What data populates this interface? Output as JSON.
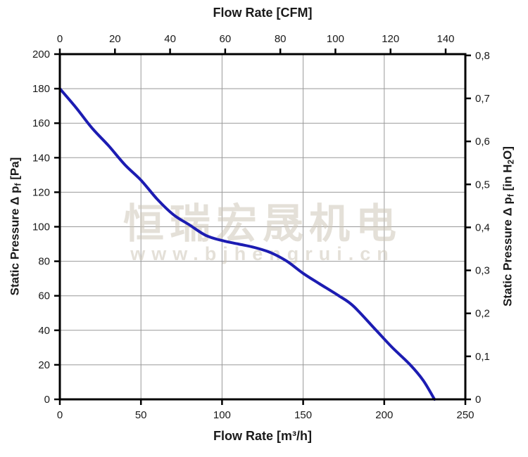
{
  "chart_data": {
    "type": "line",
    "title": "Fan performance curve: static pressure vs flow rate",
    "series": [
      {
        "name": "static-pressure-curve",
        "color": "#1c1cb2",
        "points_m3h_pa": [
          [
            0,
            180
          ],
          [
            10,
            169
          ],
          [
            20,
            157
          ],
          [
            30,
            147
          ],
          [
            40,
            136
          ],
          [
            50,
            127
          ],
          [
            60,
            116
          ],
          [
            70,
            107
          ],
          [
            80,
            101
          ],
          [
            90,
            95
          ],
          [
            100,
            92
          ],
          [
            110,
            90
          ],
          [
            120,
            88
          ],
          [
            130,
            85
          ],
          [
            140,
            80
          ],
          [
            150,
            73
          ],
          [
            160,
            67
          ],
          [
            172,
            60
          ],
          [
            181,
            54
          ],
          [
            195,
            40
          ],
          [
            205,
            30
          ],
          [
            216,
            20
          ],
          [
            224,
            11
          ],
          [
            231,
            0
          ]
        ]
      }
    ],
    "axes": {
      "top": {
        "label": "Flow Rate [CFM]",
        "min": 0,
        "max": 140,
        "ticks": [
          0,
          20,
          40,
          60,
          80,
          100,
          120,
          140
        ],
        "m3h_per_cfm": 1.699
      },
      "bottom": {
        "label": "Flow Rate [m³/h]",
        "min": 0,
        "max": 250,
        "ticks": [
          0,
          50,
          100,
          150,
          200,
          250
        ]
      },
      "left": {
        "label_text": "Static Pressure Δ pf [Pa]",
        "label_parts": [
          {
            "t": "Static Pressure Δ p"
          },
          {
            "t": "f",
            "sub": true
          },
          {
            "t": " [Pa]"
          }
        ],
        "min": 0,
        "max": 200,
        "ticks": [
          0,
          20,
          40,
          60,
          80,
          100,
          120,
          140,
          160,
          180,
          200
        ]
      },
      "right": {
        "label_text": "Static Pressure Δ pf [in H2O]",
        "label_parts": [
          {
            "t": "Static Pressure Δ p"
          },
          {
            "t": "f",
            "sub": true
          },
          {
            "t": " [in H"
          },
          {
            "t": "2",
            "sub": true
          },
          {
            "t": "O]"
          }
        ],
        "min": 0,
        "max": 0.8,
        "tick_values": [
          0,
          0.1,
          0.2,
          0.3,
          0.4,
          0.5,
          0.6,
          0.7,
          0.8
        ],
        "tick_labels": [
          "0",
          "0,1",
          "0,2",
          "0,3",
          "0,4",
          "0,5",
          "0,6",
          "0,7",
          "0,8"
        ],
        "pa_per_inh2o": 249.08
      }
    },
    "grid": {
      "vertical_m3h": [
        50,
        100,
        150,
        200
      ],
      "horizontal_pa": [
        20,
        40,
        60,
        80,
        100,
        120,
        140,
        160,
        180
      ],
      "color": "#999999"
    },
    "watermark": {
      "line1": "恒瑞宏晟机电",
      "line2": "www.bjhengrui.cn",
      "color": "#cfc8ba"
    },
    "colors": {
      "curve": "#1c1cb2",
      "axis": "#000000",
      "tick_text": "#1a1a1a",
      "background": "#ffffff"
    }
  }
}
